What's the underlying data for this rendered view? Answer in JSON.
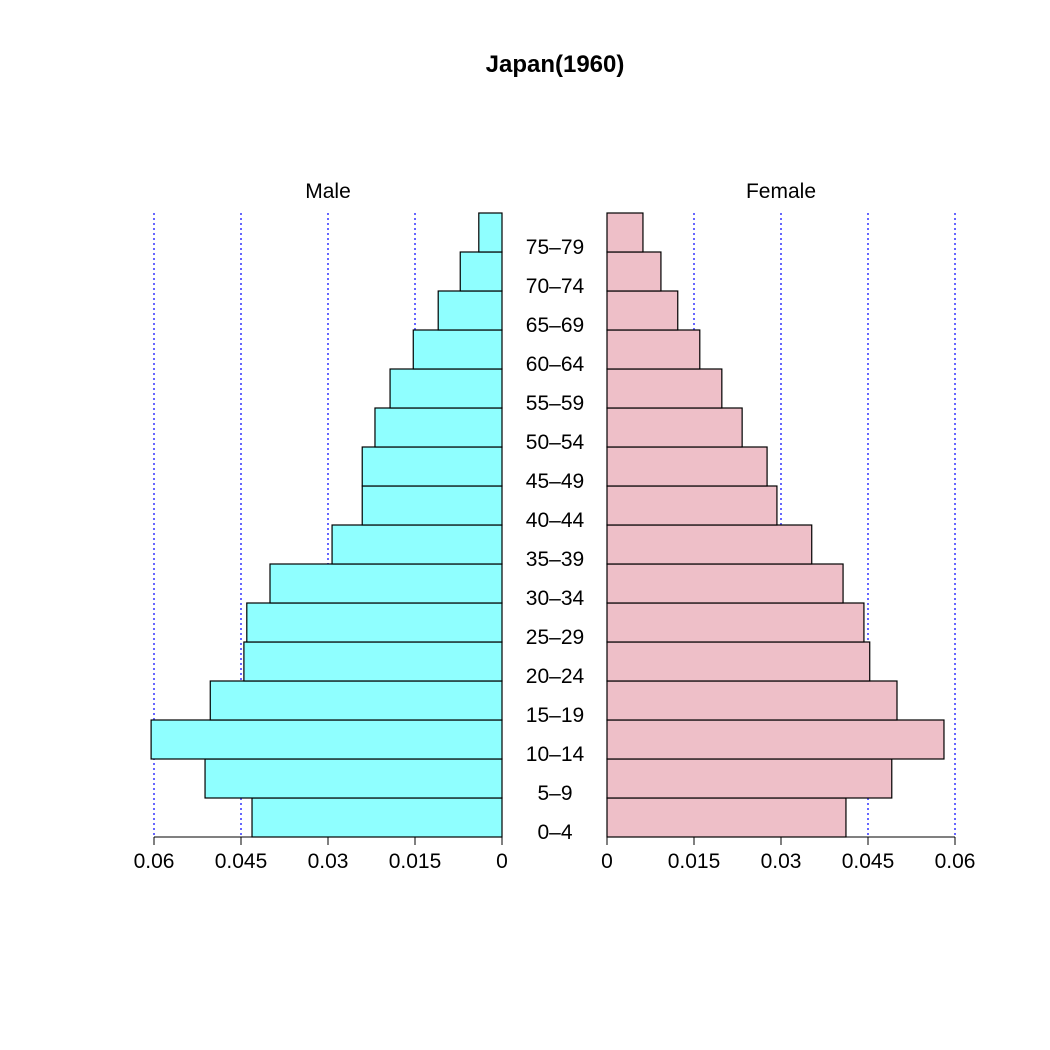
{
  "chart_data": {
    "type": "bar",
    "subtype": "population-pyramid",
    "title": "Japan(1960)",
    "categories": [
      "0–4",
      "5–9",
      "10–14",
      "15–19",
      "20–24",
      "25–29",
      "30–34",
      "35–39",
      "40–44",
      "45–49",
      "50–54",
      "55–59",
      "60–64",
      "65–69",
      "70–74",
      "75–79"
    ],
    "series": [
      {
        "name": "Male",
        "color": "#8FFFFF",
        "values": [
          0.0431,
          0.0512,
          0.0605,
          0.0503,
          0.0445,
          0.044,
          0.04,
          0.0293,
          0.0241,
          0.0241,
          0.0219,
          0.0193,
          0.0153,
          0.011,
          0.0072,
          0.004
        ]
      },
      {
        "name": "Female",
        "color": "#EEBFC8",
        "values": [
          0.0412,
          0.0491,
          0.0581,
          0.05,
          0.0453,
          0.0443,
          0.0407,
          0.0353,
          0.0293,
          0.0276,
          0.0233,
          0.0198,
          0.016,
          0.0122,
          0.0093,
          0.0062
        ]
      }
    ],
    "xlim": [
      0,
      0.06
    ],
    "ticks": [
      0,
      0.015,
      0.03,
      0.045,
      0.06
    ],
    "tick_labels_male": [
      "0.06",
      "0.045",
      "0.03",
      "0.015",
      "0"
    ],
    "tick_labels_female": [
      "0",
      "0.015",
      "0.03",
      "0.045",
      "0.06"
    ],
    "gridlines": [
      0.015,
      0.03,
      0.045,
      0.06
    ],
    "grid_color": "#0000FF"
  }
}
